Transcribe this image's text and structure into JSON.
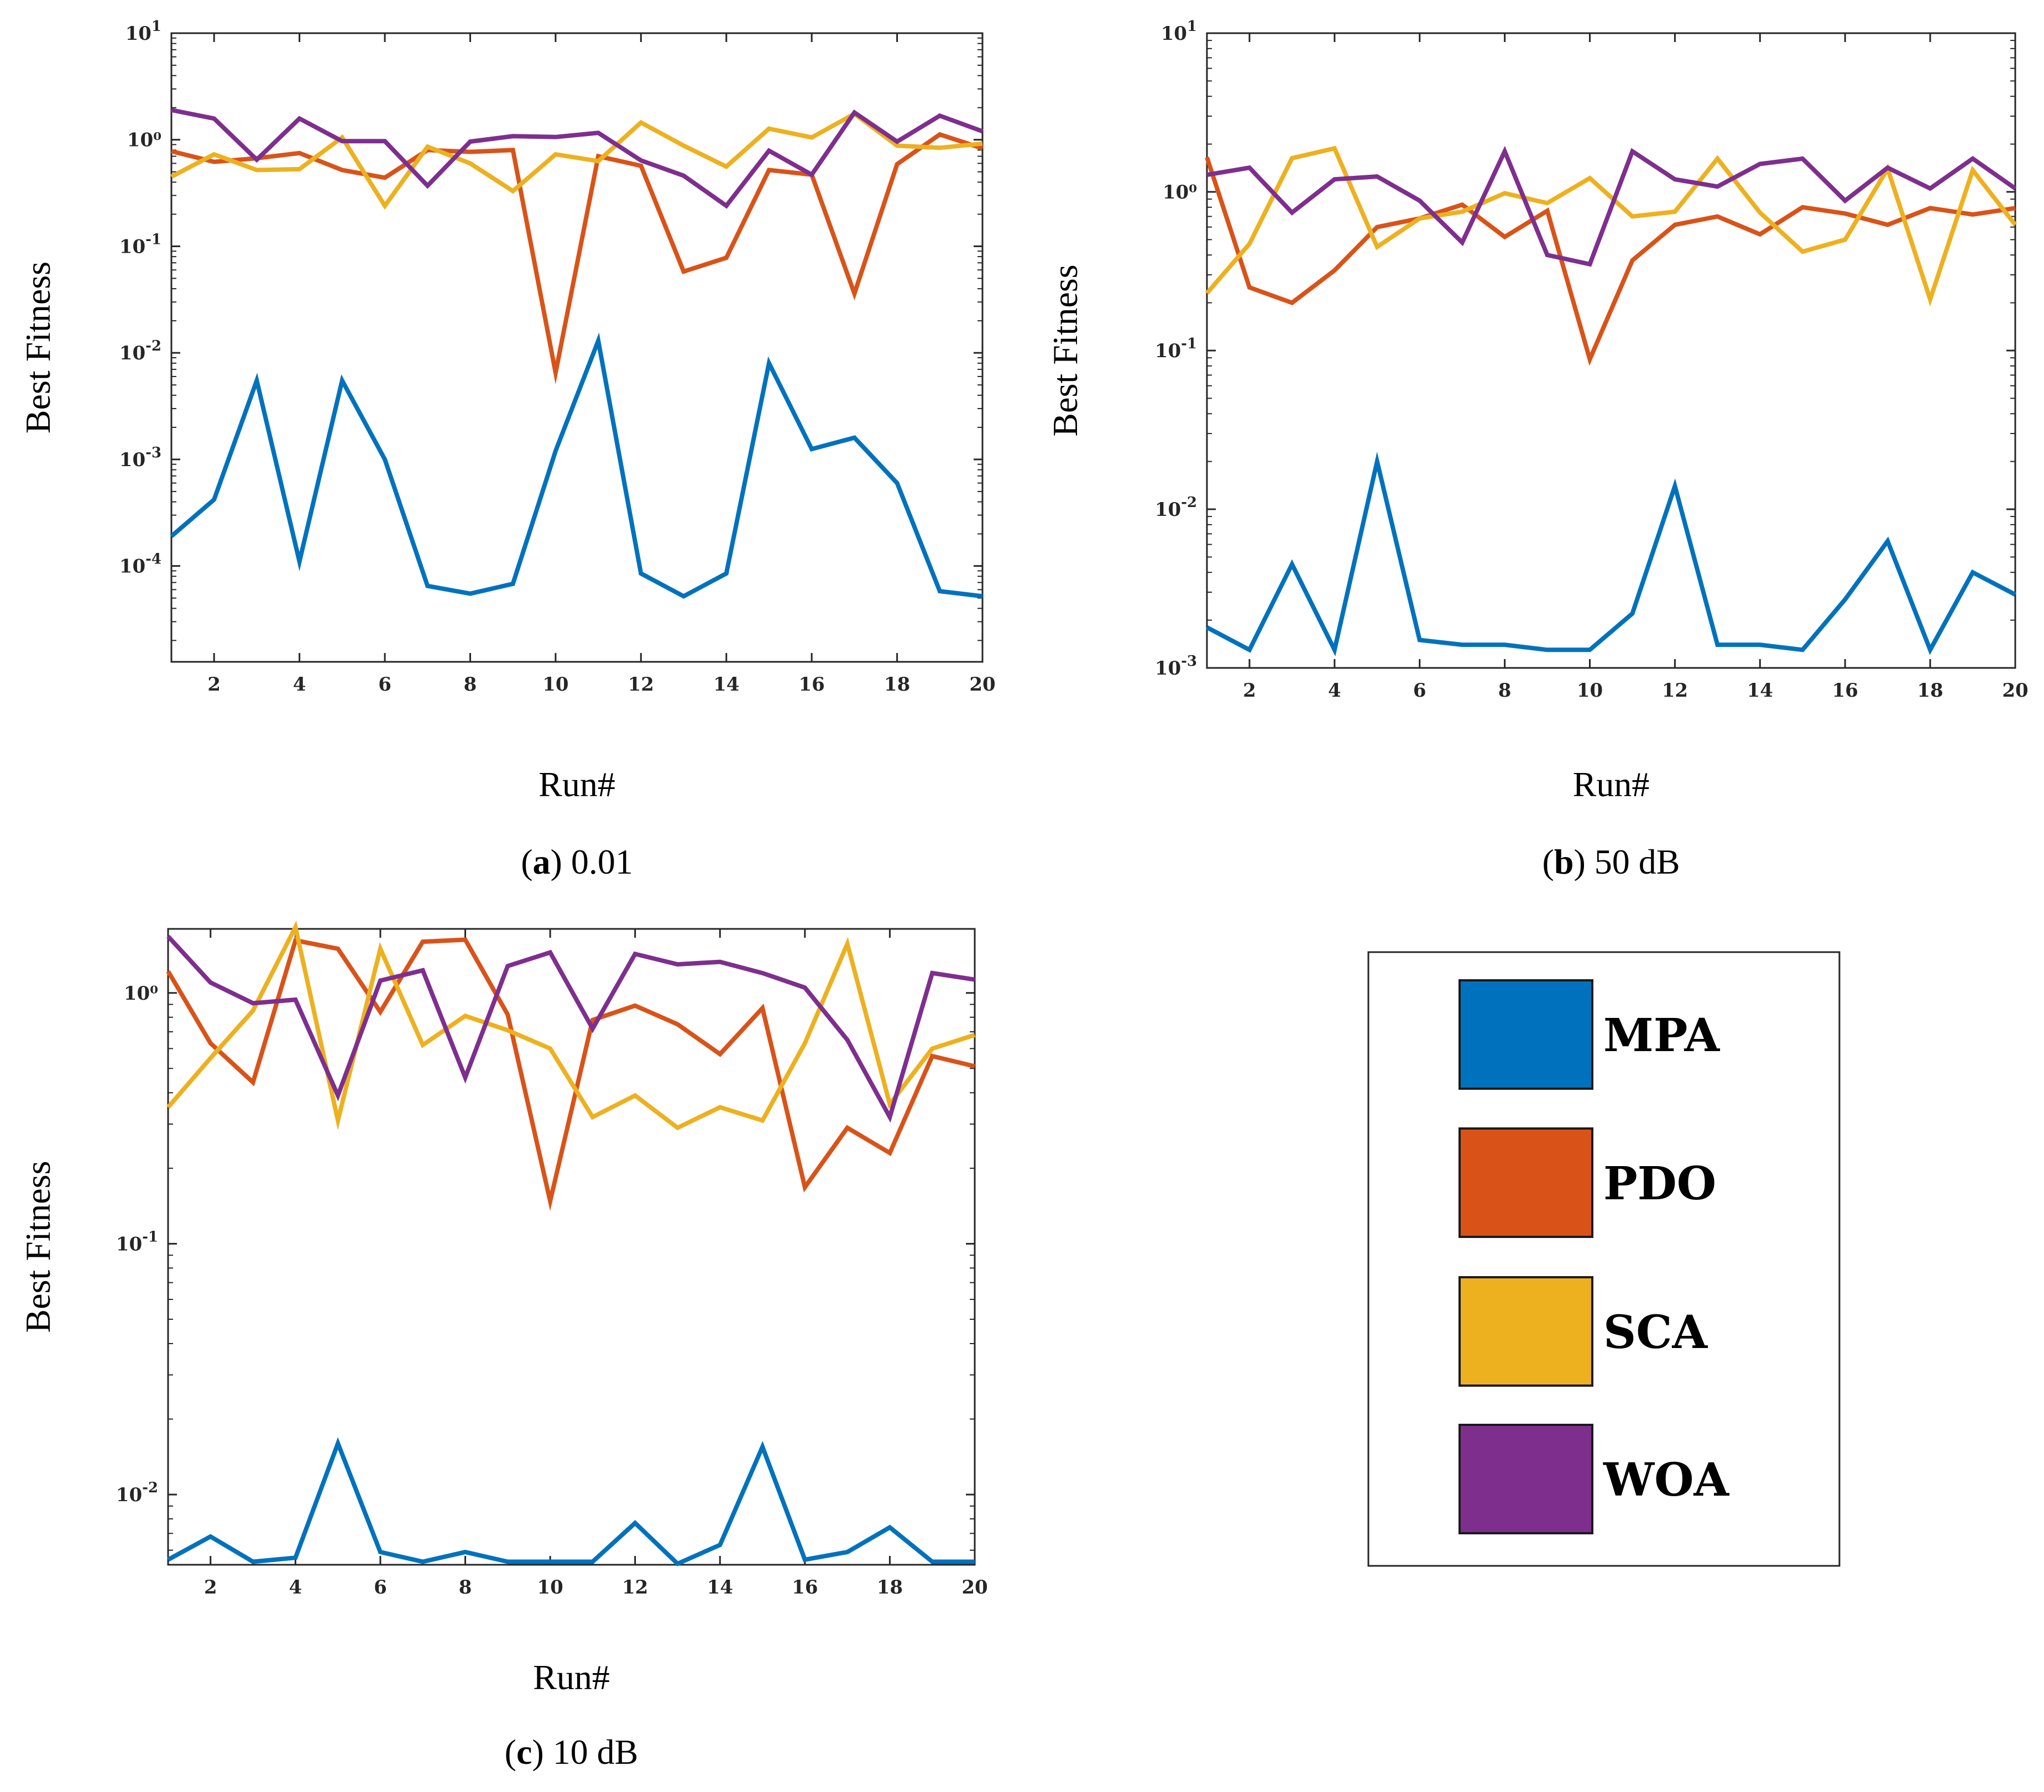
{
  "legend": {
    "items": [
      {
        "name": "MPA",
        "color": "#0072BD"
      },
      {
        "name": "PDO",
        "color": "#D95319"
      },
      {
        "name": "SCA",
        "color": "#EDB120"
      },
      {
        "name": "WOA",
        "color": "#7E2F8E"
      }
    ]
  },
  "chart_data": [
    {
      "type": "line",
      "panel": "a",
      "caption_letter": "a",
      "caption_text": "0.01",
      "xlabel": "Run#",
      "ylabel": "Best Fitness",
      "yscale": "log",
      "xlim": [
        1,
        20
      ],
      "ylim": [
        1.26e-05,
        10
      ],
      "xticks": [
        2,
        4,
        6,
        8,
        10,
        12,
        14,
        16,
        18,
        20
      ],
      "yticks": [
        {
          "value": 10,
          "base": "10",
          "exp": "1"
        },
        {
          "value": 1,
          "label": "10⁰"
        },
        {
          "value": 0.1,
          "base": "10",
          "exp": "-1"
        },
        {
          "value": 0.01,
          "base": "10",
          "exp": "-2"
        },
        {
          "value": 0.001,
          "base": "10",
          "exp": "-3"
        },
        {
          "value": 0.0001,
          "base": "10",
          "exp": "-4"
        }
      ],
      "x": [
        1,
        2,
        3,
        4,
        5,
        6,
        7,
        8,
        9,
        10,
        11,
        12,
        13,
        14,
        15,
        16,
        17,
        18,
        19,
        20
      ],
      "series": [
        {
          "name": "MPA",
          "values": [
            0.00019,
            0.00042,
            0.0055,
            0.00011,
            0.0055,
            0.001,
            6.5e-05,
            5.5e-05,
            6.8e-05,
            0.0012,
            0.013,
            8.5e-05,
            5.2e-05,
            8.5e-05,
            0.008,
            0.00125,
            0.0016,
            0.0006,
            5.8e-05,
            5.2e-05
          ]
        },
        {
          "name": "PDO",
          "values": [
            0.78,
            0.62,
            0.67,
            0.75,
            0.52,
            0.44,
            0.8,
            0.77,
            0.8,
            0.0065,
            0.7,
            0.57,
            0.058,
            0.078,
            0.52,
            0.47,
            0.036,
            0.59,
            1.12,
            0.83
          ]
        },
        {
          "name": "SCA",
          "values": [
            0.45,
            0.73,
            0.52,
            0.53,
            1.05,
            0.24,
            0.86,
            0.6,
            0.33,
            0.73,
            0.63,
            1.45,
            0.88,
            0.56,
            1.27,
            1.05,
            1.75,
            0.88,
            0.84,
            0.92
          ]
        },
        {
          "name": "WOA",
          "values": [
            1.9,
            1.58,
            0.65,
            1.58,
            0.97,
            0.97,
            0.37,
            0.96,
            1.08,
            1.06,
            1.16,
            0.64,
            0.46,
            0.24,
            0.79,
            0.47,
            1.8,
            0.96,
            1.68,
            1.2
          ]
        }
      ]
    },
    {
      "type": "line",
      "panel": "b",
      "caption_letter": "b",
      "caption_text": "50 dB",
      "xlabel": "Run#",
      "ylabel": "Best Fitness",
      "yscale": "log",
      "xlim": [
        1,
        20
      ],
      "ylim": [
        0.001,
        10
      ],
      "xticks": [
        2,
        4,
        6,
        8,
        10,
        12,
        14,
        16,
        18,
        20
      ],
      "yticks": [
        {
          "value": 10,
          "base": "10",
          "exp": "1"
        },
        {
          "value": 1,
          "label": "10⁰"
        },
        {
          "value": 0.1,
          "base": "10",
          "exp": "-1"
        },
        {
          "value": 0.01,
          "base": "10",
          "exp": "-2"
        },
        {
          "value": 0.001,
          "base": "10",
          "exp": "-3"
        }
      ],
      "x": [
        1,
        2,
        3,
        4,
        5,
        6,
        7,
        8,
        9,
        10,
        11,
        12,
        13,
        14,
        15,
        16,
        17,
        18,
        19,
        20
      ],
      "series": [
        {
          "name": "MPA",
          "values": [
            0.0018,
            0.0013,
            0.0045,
            0.0013,
            0.02,
            0.0015,
            0.0014,
            0.0014,
            0.0013,
            0.0013,
            0.0022,
            0.014,
            0.0014,
            0.0014,
            0.0013,
            0.0027,
            0.0063,
            0.0013,
            0.004,
            0.0029
          ]
        },
        {
          "name": "PDO",
          "values": [
            1.65,
            0.25,
            0.2,
            0.32,
            0.6,
            0.68,
            0.83,
            0.52,
            0.76,
            0.088,
            0.37,
            0.62,
            0.7,
            0.54,
            0.8,
            0.73,
            0.62,
            0.79,
            0.72,
            0.79
          ]
        },
        {
          "name": "SCA",
          "values": [
            0.23,
            0.47,
            1.63,
            1.88,
            0.45,
            0.68,
            0.75,
            0.98,
            0.85,
            1.22,
            0.7,
            0.75,
            1.62,
            0.74,
            0.42,
            0.5,
            1.4,
            0.21,
            1.37,
            0.62
          ]
        },
        {
          "name": "WOA",
          "values": [
            1.28,
            1.42,
            0.74,
            1.2,
            1.25,
            0.88,
            0.48,
            1.8,
            0.4,
            0.35,
            1.8,
            1.2,
            1.08,
            1.5,
            1.62,
            0.88,
            1.42,
            1.05,
            1.62,
            1.05
          ]
        }
      ]
    },
    {
      "type": "line",
      "panel": "c",
      "caption_letter": "c",
      "caption_text": "10 dB",
      "xlabel": "Run#",
      "ylabel": "Best Fitness",
      "yscale": "log",
      "xlim": [
        1,
        20
      ],
      "ylim": [
        0.00525,
        1.8
      ],
      "xticks": [
        2,
        4,
        6,
        8,
        10,
        12,
        14,
        16,
        18,
        20
      ],
      "yticks": [
        {
          "value": 1,
          "label": "10⁰"
        },
        {
          "value": 0.1,
          "base": "10",
          "exp": "-1"
        },
        {
          "value": 0.01,
          "base": "10",
          "exp": "-2"
        }
      ],
      "x": [
        1,
        2,
        3,
        4,
        5,
        6,
        7,
        8,
        9,
        10,
        11,
        12,
        13,
        14,
        15,
        16,
        17,
        18,
        19,
        20
      ],
      "series": [
        {
          "name": "MPA",
          "values": [
            0.0055,
            0.0068,
            0.0054,
            0.0056,
            0.016,
            0.0059,
            0.0054,
            0.0059,
            0.0054,
            0.0054,
            0.0054,
            0.0077,
            0.0053,
            0.0063,
            0.0155,
            0.0055,
            0.0059,
            0.0074,
            0.0054,
            0.0054
          ]
        },
        {
          "name": "PDO",
          "values": [
            1.22,
            0.63,
            0.44,
            1.62,
            1.5,
            0.84,
            1.6,
            1.63,
            0.82,
            0.148,
            0.78,
            0.89,
            0.75,
            0.57,
            0.87,
            0.168,
            0.29,
            0.23,
            0.56,
            0.51
          ]
        },
        {
          "name": "SCA",
          "values": [
            0.35,
            0.55,
            0.85,
            1.83,
            0.31,
            1.5,
            0.62,
            0.81,
            0.71,
            0.6,
            0.32,
            0.39,
            0.29,
            0.35,
            0.31,
            0.63,
            1.57,
            0.36,
            0.6,
            0.68
          ]
        },
        {
          "name": "WOA",
          "values": [
            1.68,
            1.1,
            0.91,
            0.94,
            0.39,
            1.12,
            1.23,
            0.46,
            1.28,
            1.45,
            0.72,
            1.43,
            1.3,
            1.33,
            1.2,
            1.05,
            0.65,
            0.32,
            1.2,
            1.13
          ]
        }
      ]
    }
  ]
}
